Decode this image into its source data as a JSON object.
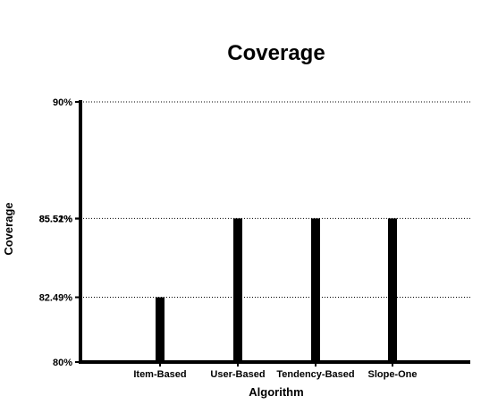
{
  "chart_data": {
    "type": "bar",
    "title": "Coverage",
    "xlabel": "Algorithm",
    "ylabel": "Coverage",
    "categories": [
      "Item-Based",
      "User-Based",
      "Tendency-Based",
      "Slope-One"
    ],
    "values": [
      82.49,
      85.52,
      85.52,
      85.52
    ],
    "ylim": [
      80,
      90
    ],
    "yticks": [
      {
        "value": 80,
        "label": "80%"
      },
      {
        "value": 82.49,
        "label": "82.49%"
      },
      {
        "value": 85.51,
        "label": "85.51%"
      },
      {
        "value": 85.52,
        "label": "85.52%"
      },
      {
        "value": 90,
        "label": "90%"
      }
    ],
    "gridlines_at": [
      82.49,
      85.52,
      90
    ],
    "grid": "dotted horizontal",
    "bar_color": "#000000",
    "legend": "none"
  }
}
